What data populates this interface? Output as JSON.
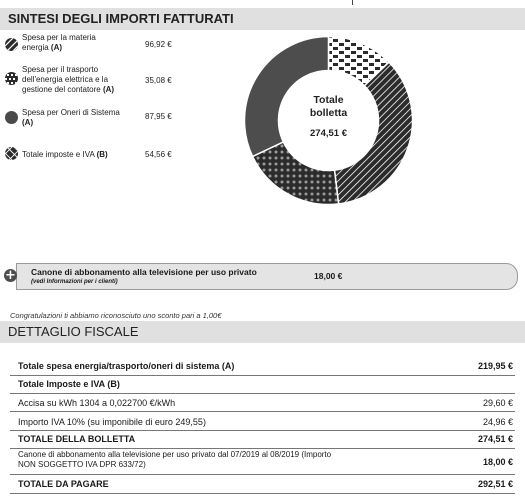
{
  "summary": {
    "title": "SINTESI DEGLI IMPORTI FATTURATI",
    "legend": [
      {
        "lines": [
          "Spesa per la materia",
          "energia"
        ],
        "tag": "(A)",
        "value": "96,92 €"
      },
      {
        "lines": [
          "Spesa per il trasporto",
          "dell'energia elettrica e la",
          "gestione del contatore"
        ],
        "tag": "(A)",
        "value": "35,08 €"
      },
      {
        "lines": [
          "Spesa per Oneri di Sistema",
          ""
        ],
        "tag": "(A)",
        "value": "87,95 €"
      },
      {
        "lines": [
          "Totale imposte e IVA"
        ],
        "tag": "(B)",
        "value": "54,56 €"
      }
    ],
    "donut_center": {
      "title_line1": "Totale",
      "title_line2": "bolletta",
      "amount": "274,51 €"
    }
  },
  "chart_data": {
    "type": "pie",
    "values": [
      96.92,
      35.08,
      87.95,
      54.56
    ],
    "categories": [
      "Spesa per la materia energia (A)",
      "Spesa per il trasporto dell'energia elettrica e la gestione del contatore (A)",
      "Spesa per Oneri di Sistema (A)",
      "Totale imposte e IVA (B)"
    ],
    "title": "",
    "donut": true
  },
  "canone": {
    "title": "Canone di abbonamento alla televisione per uso privato",
    "subtitle": "(vedi Informazioni per i clienti)",
    "value": "18,00 €"
  },
  "note": "Congratulazioni ti abbiamo riconosciuto uno sconto pari a 1,00€",
  "detail": {
    "title": "DETTAGLIO FISCALE",
    "rows": [
      {
        "label": "Totale spesa energia/trasporto/oneri di sistema (A)",
        "value": "219,95 €"
      },
      {
        "label": "Totale Imposte e IVA (B)",
        "value": ""
      },
      {
        "label": "Accisa su kWh 1304 a 0,022700 €/kWh",
        "value": "29,60 €"
      },
      {
        "label": "Importo IVA 10% (su imponibile di euro 249,55)",
        "value": "24,96 €"
      },
      {
        "label": "TOTALE DELLA BOLLETTA",
        "value": "274,51 €"
      },
      {
        "label_line1": "Canone di abbonamento alla televisione per uso privato dal 07/2019 al 08/2019 (Importo",
        "label_line2": "NON SOGGETTO IVA DPR 633/72)",
        "value": "18,00 €"
      },
      {
        "label": "TOTALE DA PAGARE",
        "value": "292,51 €"
      }
    ]
  }
}
